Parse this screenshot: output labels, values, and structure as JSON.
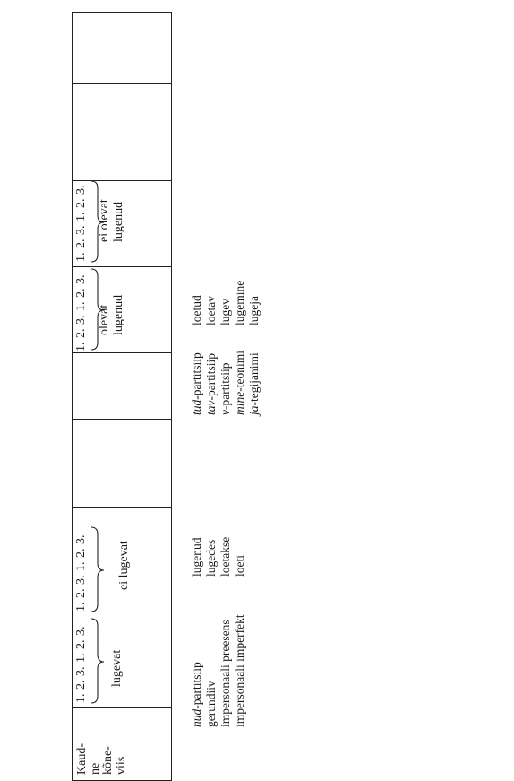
{
  "row_label": [
    "Kaud-",
    "ne",
    "kõne-",
    "viis"
  ],
  "ordinals": [
    "1.",
    "2.",
    "3.",
    "1.",
    "2.",
    "3."
  ],
  "groups": [
    {
      "form": "lugevat"
    },
    {
      "form": "ei lugevat"
    },
    {
      "form_lines": [
        "olevat",
        "lugenud"
      ]
    },
    {
      "form_lines": [
        "ei olevat",
        "lugenud"
      ]
    }
  ],
  "forms_left": [
    {
      "prefix": "nud",
      "name": "-partitsiip",
      "value": "lugenud"
    },
    {
      "prefix": "",
      "name": "gerundiiv",
      "value": "lugedes"
    },
    {
      "prefix": "",
      "name": "impersonaali preesens",
      "value": "loetakse"
    },
    {
      "prefix": "",
      "name": "impersonaali imperfekt",
      "value": "loeti"
    }
  ],
  "forms_right": [
    {
      "prefix": "tud",
      "name": "-partitsiip",
      "value": "loetud"
    },
    {
      "prefix": "tav",
      "name": "-partitsiip",
      "value": "loetav"
    },
    {
      "prefix": "v",
      "name": "-partitsiip",
      "value": "lugev"
    },
    {
      "prefix": "mine",
      "name": "-teonimi",
      "value": "lugemine"
    },
    {
      "prefix": "ja",
      "name": "-tegijanimi",
      "value": "lugeja"
    }
  ]
}
